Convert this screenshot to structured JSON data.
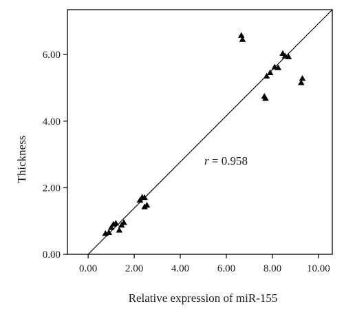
{
  "chart_data": {
    "type": "scatter",
    "xlabel": "Relative expression of miR-155",
    "ylabel": "Thickness",
    "xlim": [
      -0.9,
      10.6
    ],
    "ylim": [
      0,
      7.35
    ],
    "x_ticks": [
      "0.00",
      "2.00",
      "4.00",
      "6.00",
      "8.00",
      "10.00"
    ],
    "y_ticks": [
      "0.00",
      "2.00",
      "4.00",
      "6.00"
    ],
    "annotation": {
      "var": "r",
      "text": " = 0.958"
    },
    "marker": "triangle",
    "marker_color": "#000000",
    "fit_line": {
      "x": [
        0,
        10.6
      ],
      "y": [
        0,
        7.35
      ]
    },
    "points": [
      {
        "x": 0.75,
        "y": 0.62
      },
      {
        "x": 0.9,
        "y": 0.65
      },
      {
        "x": 1.0,
        "y": 0.8
      },
      {
        "x": 1.1,
        "y": 0.9
      },
      {
        "x": 1.2,
        "y": 0.93
      },
      {
        "x": 1.35,
        "y": 0.72
      },
      {
        "x": 1.45,
        "y": 0.87
      },
      {
        "x": 1.55,
        "y": 0.95
      },
      {
        "x": 2.25,
        "y": 1.62
      },
      {
        "x": 2.35,
        "y": 1.71
      },
      {
        "x": 2.45,
        "y": 1.7
      },
      {
        "x": 2.45,
        "y": 1.42
      },
      {
        "x": 2.55,
        "y": 1.47
      },
      {
        "x": 6.65,
        "y": 6.57
      },
      {
        "x": 6.7,
        "y": 6.45
      },
      {
        "x": 7.65,
        "y": 4.74
      },
      {
        "x": 7.7,
        "y": 4.68
      },
      {
        "x": 7.75,
        "y": 5.35
      },
      {
        "x": 7.9,
        "y": 5.45
      },
      {
        "x": 8.1,
        "y": 5.62
      },
      {
        "x": 8.25,
        "y": 5.6
      },
      {
        "x": 8.45,
        "y": 6.03
      },
      {
        "x": 8.55,
        "y": 5.95
      },
      {
        "x": 8.7,
        "y": 5.93
      },
      {
        "x": 9.25,
        "y": 5.15
      },
      {
        "x": 9.3,
        "y": 5.28
      }
    ]
  }
}
